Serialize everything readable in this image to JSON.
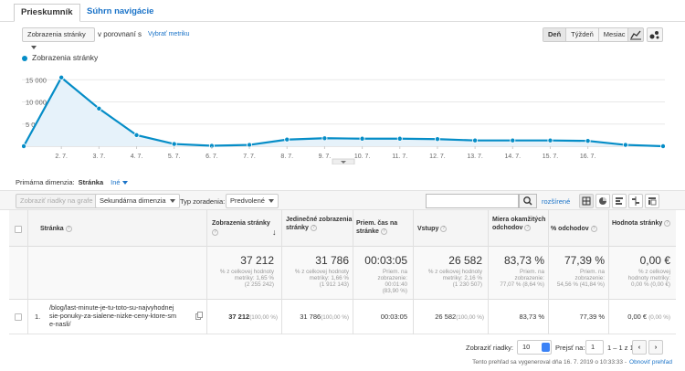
{
  "tabs": {
    "explorer": "Prieskumník",
    "nav_summary": "Súhrn navigácie"
  },
  "controls": {
    "metric_select": "Zobrazenia stránky",
    "compare_label": "v porovnaní s",
    "select_metric_link": "Vybrať metriku",
    "periods": [
      "Deň",
      "Týždeň",
      "Mesiac"
    ]
  },
  "chart_data": {
    "type": "area",
    "series": [
      {
        "name": "Zobrazenia stránky",
        "values": [
          0,
          15500,
          8500,
          2500,
          500,
          100,
          300,
          1500,
          1800,
          1700,
          1700,
          1600,
          1300,
          1300,
          1300,
          1200,
          300,
          0
        ]
      }
    ],
    "x_tick_labels": [
      "2. 7.",
      "3. 7.",
      "4. 7.",
      "5. 7.",
      "6. 7.",
      "7. 7.",
      "8. 7.",
      "9. 7.",
      "10. 7.",
      "11. 7.",
      "12. 7.",
      "13. 7.",
      "14. 7.",
      "15. 7.",
      "16. 7."
    ],
    "y_tick_labels": [
      "15 000",
      "10 000",
      "5 000"
    ],
    "ylim": [
      0,
      16500
    ],
    "grid": true,
    "color": "#058dc7"
  },
  "primary_dimension": {
    "label": "Primárna dimenzia:",
    "value": "Stránka",
    "other": "Iné"
  },
  "toolbar": {
    "plot_rows": "Zobraziť riadky na grafe",
    "secondary_dim": "Sekundárna dimenzia",
    "sort_type_label": "Typ zoradenia:",
    "sort_type_value": "Predvolené",
    "advanced": "rozšírené"
  },
  "headers": {
    "page": "Stránka",
    "pageviews": "Zobrazenia stránky",
    "unique_pageviews": "Jedinečné zobrazenia stránky",
    "avg_time": "Priem. čas na stránke",
    "entrances": "Vstupy",
    "bounce_rate": "Miera okamžitých odchodov",
    "exit_pct": "% odchodov",
    "page_value": "Hodnota stránky"
  },
  "totals": {
    "pageviews": {
      "value": "37 212",
      "sub1": "% z celkovej hodnoty",
      "sub2": "metriky: 1,65 %",
      "sub3": "(2 255 242)"
    },
    "unique": {
      "value": "31 786",
      "sub1": "% z celkovej hodnoty",
      "sub2": "metriky: 1,66 %",
      "sub3": "(1 912 143)"
    },
    "avg_time": {
      "value": "00:03:05",
      "sub1": "Priem. na",
      "sub2": "zobrazenie:",
      "sub3": "00:01:40",
      "sub4": "(83,90 %)"
    },
    "entrances": {
      "value": "26 582",
      "sub1": "% z celkovej hodnoty",
      "sub2": "metriky: 2,16 %",
      "sub3": "(1 230 507)"
    },
    "bounce": {
      "value": "83,73 %",
      "sub1": "Priem. na",
      "sub2": "zobrazenie:",
      "sub3": "77,07 % (8,64 %)"
    },
    "exit": {
      "value": "77,39 %",
      "sub1": "Priem. na",
      "sub2": "zobrazenie:",
      "sub3": "54,56 % (41,84 %)"
    },
    "value": {
      "value": "0,00 €",
      "sub1": "% z celkovej",
      "sub2": "hodnoty metriky:",
      "sub3": "0,00 % (0,00 €)"
    }
  },
  "rows": [
    {
      "index": "1.",
      "page_line1": "/blog/last-minute-je-tu-toto-su-najvyhodnej",
      "page_line2": "sie-ponuky-za-sialene-nizke-ceny-ktore-sm",
      "page_line3": "e-nasli/",
      "pageviews": "37 212",
      "pageviews_pct": "(100,00 %)",
      "unique": "31 786",
      "unique_pct": "(100,00 %)",
      "avg_time": "00:03:05",
      "entrances": "26 582",
      "entrances_pct": "(100,00 %)",
      "bounce": "83,73 %",
      "exit": "77,39 %",
      "value": "0,00 €",
      "value_pct": "(0,00 %)"
    }
  ],
  "pager": {
    "show_rows_label": "Zobraziť riadky:",
    "rows_value": "10",
    "goto_label": "Prejsť na:",
    "goto_value": "1",
    "range": "1 – 1 z 1"
  },
  "footer": {
    "generated": "Tento prehľad sa vygeneroval dňa 16. 7. 2019 o 10:33:33 -",
    "refresh": "Obnoviť prehľad"
  }
}
